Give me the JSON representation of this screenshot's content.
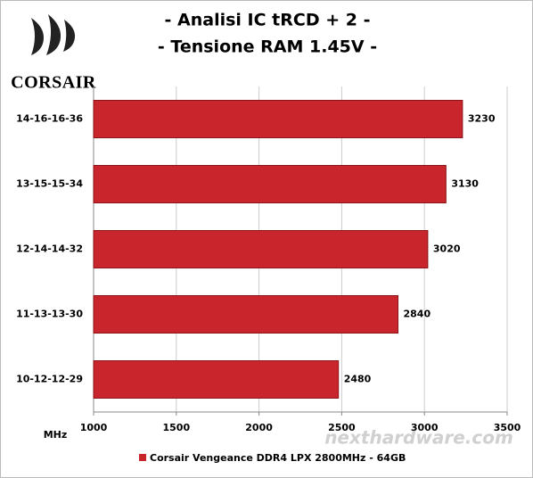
{
  "chart_data": {
    "type": "barh",
    "title": "- Analisi IC  tRCD + 2 -",
    "subtitle": "- Tensione RAM 1.45V -",
    "logo": "CORSAIR",
    "watermark": "nexthardware.com",
    "x_label": "MHz",
    "categories": [
      "14-16-16-36",
      "13-15-15-34",
      "12-14-14-32",
      "11-13-13-30",
      "10-12-12-29"
    ],
    "series": [
      {
        "name": "Corsair Vengeance DDR4 LPX 2800MHz - 64GB",
        "color": "#c8262c",
        "values": [
          3230,
          3130,
          3020,
          2840,
          2480
        ]
      }
    ],
    "xlim": [
      1000,
      3500
    ],
    "xticks": [
      1000,
      1500,
      2000,
      2500,
      3000,
      3500
    ],
    "grid": true
  }
}
